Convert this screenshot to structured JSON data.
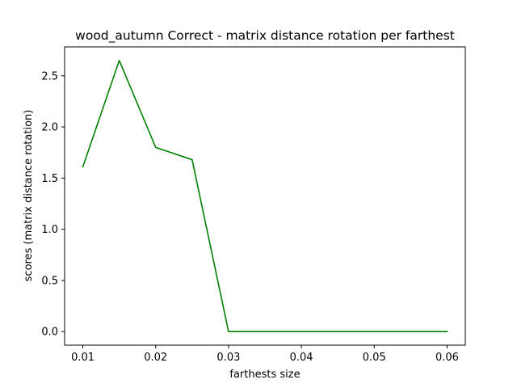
{
  "chart_data": {
    "type": "line",
    "title": "wood_autumn Correct - matrix distance rotation per farthest",
    "xlabel": "farthests size",
    "ylabel": "scores (matrix distance rotation)",
    "x": [
      0.01,
      0.015,
      0.02,
      0.025,
      0.03,
      0.035,
      0.04,
      0.045,
      0.05,
      0.055,
      0.06
    ],
    "series": [
      {
        "values": [
          1.61,
          2.65,
          1.8,
          1.68,
          0.0,
          0.0,
          0.0,
          0.0,
          0.0,
          0.0,
          0.0
        ],
        "color": "#008000"
      }
    ],
    "xlim": [
      0.0075,
      0.0625
    ],
    "ylim": [
      -0.1325,
      2.7825
    ],
    "xticks": [
      0.01,
      0.02,
      0.03,
      0.04,
      0.05,
      0.06
    ],
    "xtick_labels": [
      "0.01",
      "0.02",
      "0.03",
      "0.04",
      "0.05",
      "0.06"
    ],
    "yticks": [
      0.0,
      0.5,
      1.0,
      1.5,
      2.0,
      2.5
    ],
    "ytick_labels": [
      "0.0",
      "0.5",
      "1.0",
      "1.5",
      "2.0",
      "2.5"
    ],
    "grid": false,
    "legend": false
  }
}
